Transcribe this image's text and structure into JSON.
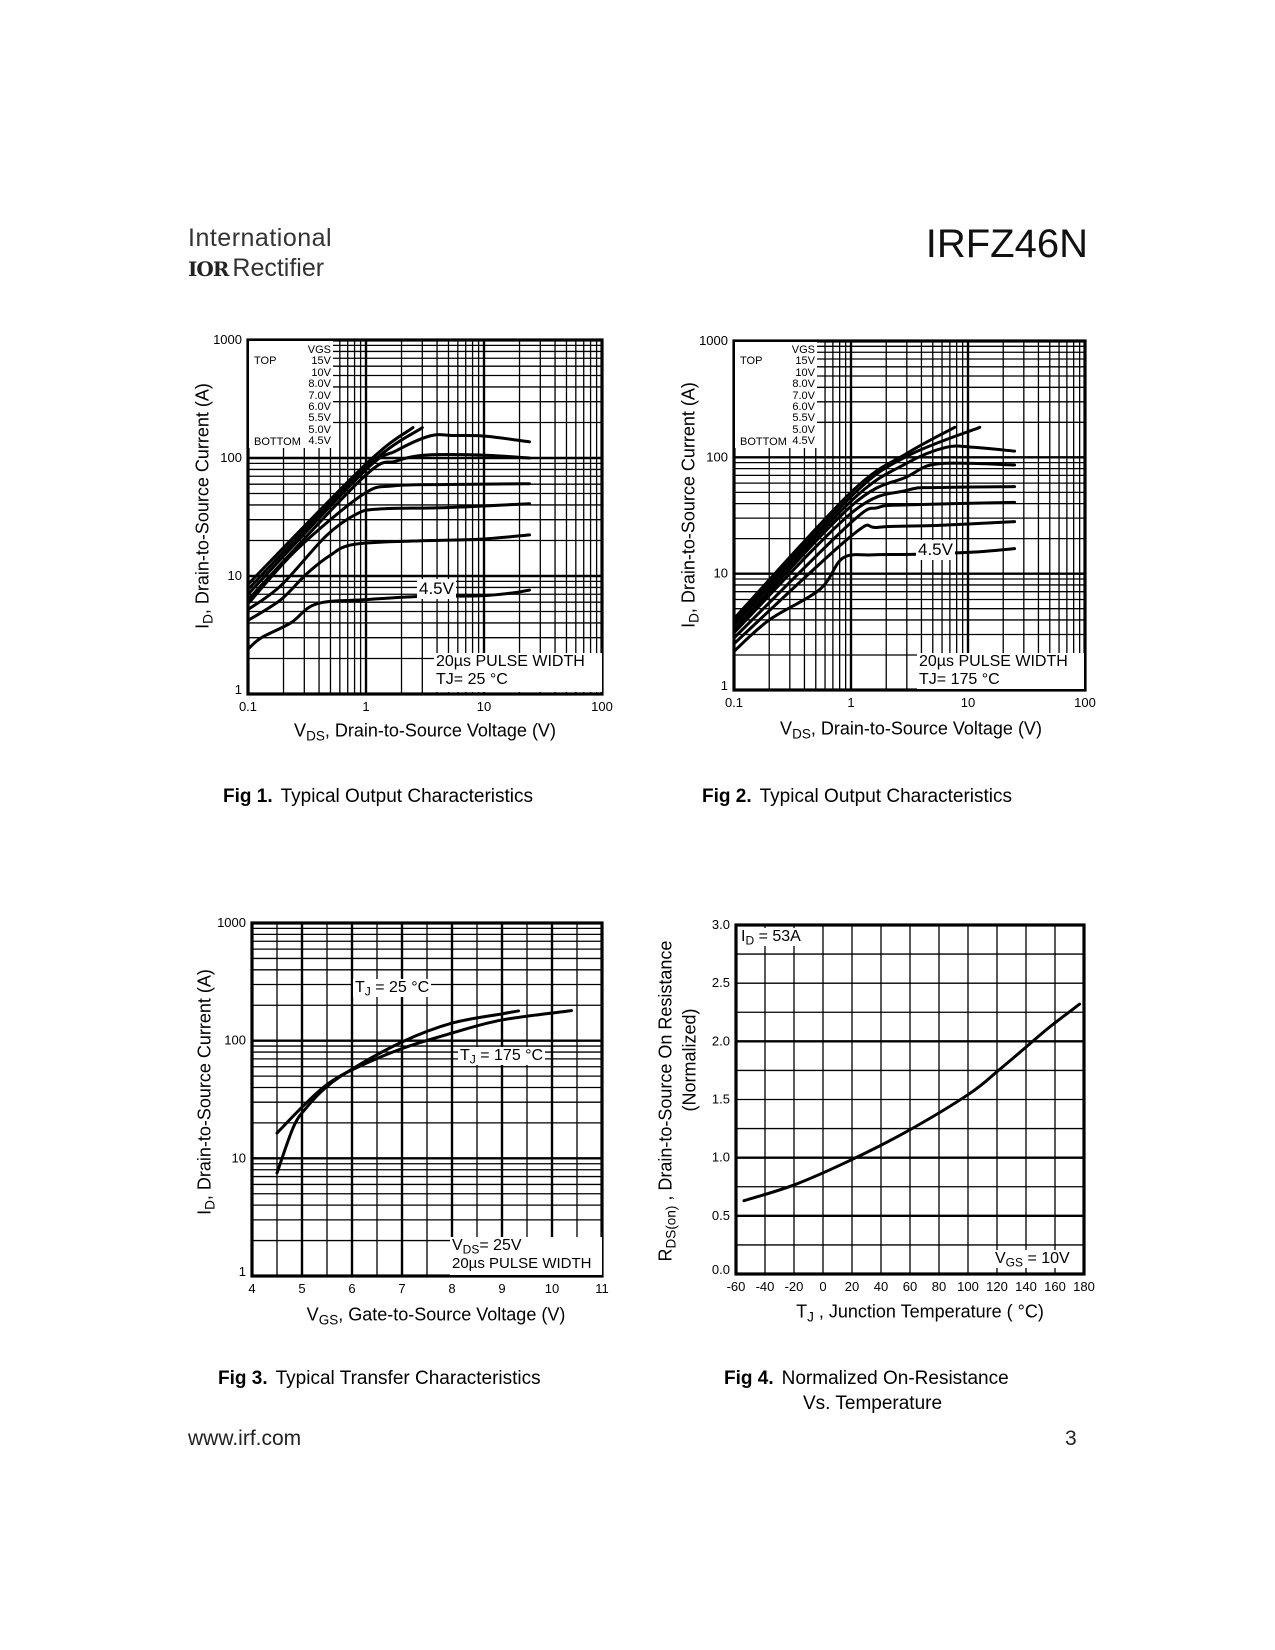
{
  "header": {
    "company_line1": "International",
    "company_logo": "IOR",
    "company_line2": "Rectifier",
    "part_number": "IRFZ46N"
  },
  "footer": {
    "url": "www.irf.com",
    "page": "3"
  },
  "chart_data": [
    {
      "type": "line",
      "caption_num": "Fig 1.",
      "caption": "Typical Output Characteristics",
      "xlabel": {
        "main": "V",
        "sub": "DS",
        "rest": ", Drain-to-Source Voltage (V)"
      },
      "ylabel": {
        "main": "I",
        "sub": "D",
        "rest": ",  Drain-to-Source Current (A)"
      },
      "xscale": "log",
      "yscale": "log",
      "xlim": [
        0.1,
        100
      ],
      "ylim": [
        1,
        1000
      ],
      "x_ticks": [
        "0.1",
        "1",
        "10",
        "100"
      ],
      "y_ticks": [
        "1",
        "10",
        "100",
        "1000"
      ],
      "grid": true,
      "legend": {
        "title": "VGS",
        "top_label": "TOP",
        "bottom_label": "BOTTOM",
        "values": [
          "15V",
          "10V",
          "8.0V",
          "7.0V",
          "6.0V",
          "5.5V",
          "5.0V",
          "4.5V"
        ],
        "placement": "top-left"
      },
      "curve_label": "4.5V",
      "annotation": {
        "line1": "20µs PULSE WIDTH",
        "line2_main": "TJ",
        "line2_rest": "= 25 °C"
      },
      "series": [
        {
          "name": "15V",
          "x": [
            0.1,
            1.0,
            2.5
          ],
          "y": [
            8.5,
            89,
            181
          ]
        },
        {
          "name": "10V",
          "x": [
            0.1,
            1.0,
            3.0
          ],
          "y": [
            7.7,
            83,
            181
          ]
        },
        {
          "name": "8.0V",
          "x": [
            0.1,
            0.94,
            1.8,
            3.5,
            5.5,
            10.4,
            24.3
          ],
          "y": [
            7.0,
            75,
            115,
            154,
            155,
            153,
            137
          ]
        },
        {
          "name": "7.0V",
          "x": [
            0.1,
            0.94,
            1.8,
            3.3,
            9.2,
            24.3
          ],
          "y": [
            6.3,
            68,
            94,
            106,
            106,
            100
          ]
        },
        {
          "name": "6.0V",
          "x": [
            0.1,
            0.26,
            0.94,
            1.7,
            4.8,
            24.3
          ],
          "y": [
            5.8,
            16.8,
            49,
            58,
            59.6,
            60.5
          ]
        },
        {
          "name": "5.5V",
          "x": [
            0.1,
            0.19,
            0.46,
            0.83,
            1.3,
            4.8,
            24.3
          ],
          "y": [
            5.2,
            8.3,
            21.9,
            33.5,
            37,
            38,
            41
          ]
        },
        {
          "name": "5.0V",
          "x": [
            0.1,
            0.19,
            0.31,
            0.49,
            0.78,
            2.5,
            9.2,
            24.3
          ],
          "y": [
            4.2,
            6.3,
            10.3,
            14.8,
            18.5,
            19.8,
            20.5,
            22.3
          ]
        },
        {
          "name": "4.5V",
          "x": [
            0.1,
            0.13,
            0.23,
            0.38,
            1.0,
            2.8,
            9.2,
            17.7,
            24.3
          ],
          "y": [
            2.4,
            3.0,
            4.0,
            5.8,
            6.3,
            6.7,
            6.8,
            7.2,
            7.6
          ]
        }
      ]
    },
    {
      "type": "line",
      "caption_num": "Fig 2.",
      "caption": "Typical Output Characteristics",
      "xlabel": {
        "main": "V",
        "sub": "DS",
        "rest": ", Drain-to-Source Voltage (V)"
      },
      "ylabel": {
        "main": "I",
        "sub": "D",
        "rest": ",  Drain-to-Source Current (A)"
      },
      "xscale": "log",
      "yscale": "log",
      "xlim": [
        0.1,
        100
      ],
      "ylim": [
        1,
        1000
      ],
      "x_ticks": [
        "0.1",
        "1",
        "10",
        "100"
      ],
      "y_ticks": [
        "1",
        "10",
        "100",
        "1000"
      ],
      "grid": true,
      "legend": {
        "title": "VGS",
        "top_label": "TOP",
        "bottom_label": "BOTTOM",
        "values": [
          "15V",
          "10V",
          "8.0V",
          "7.0V",
          "6.0V",
          "5.5V",
          "5.0V",
          "4.5V"
        ],
        "placement": "top-left"
      },
      "curve_label": "4.5V",
      "annotation": {
        "line1": "20µs PULSE WIDTH",
        "line2_main": "TJ",
        "line2_rest": "= 175 °C"
      },
      "series": [
        {
          "name": "15V",
          "x": [
            0.1,
            1.0,
            3.0,
            7.7
          ],
          "y": [
            4.1,
            50,
            108,
            181
          ]
        },
        {
          "name": "10V",
          "x": [
            0.1,
            1.0,
            3.0,
            12.6
          ],
          "y": [
            3.8,
            46,
            102,
            181
          ]
        },
        {
          "name": "8.0V",
          "x": [
            0.1,
            1.0,
            3.0,
            6.5,
            11,
            25
          ],
          "y": [
            3.6,
            42,
            89,
            122,
            122,
            113
          ]
        },
        {
          "name": "7.0V",
          "x": [
            0.1,
            1.0,
            3.0,
            5.6,
            25
          ],
          "y": [
            3.3,
            38,
            68,
            88,
            86
          ]
        },
        {
          "name": "6.0V",
          "x": [
            0.1,
            1.0,
            3.0,
            5.6,
            25
          ],
          "y": [
            3.1,
            33,
            52,
            55,
            56
          ]
        },
        {
          "name": "5.5V",
          "x": [
            0.1,
            0.98,
            1.7,
            3.0,
            25
          ],
          "y": [
            2.8,
            27,
            37,
            39,
            41
          ]
        },
        {
          "name": "5.0V",
          "x": [
            0.1,
            1.0,
            1.7,
            5.6,
            25
          ],
          "y": [
            2.5,
            21,
            25,
            26,
            28
          ]
        },
        {
          "name": "4.5V",
          "x": [
            0.1,
            0.2,
            0.54,
            0.85,
            1.5,
            3.6,
            11,
            25
          ],
          "y": [
            2.15,
            4.0,
            7.3,
            13.6,
            14.5,
            14.7,
            15.3,
            16.4
          ]
        }
      ]
    },
    {
      "type": "line",
      "caption_num": "Fig 3.",
      "caption": "Typical Transfer Characteristics",
      "xlabel": {
        "main": "V",
        "sub": "GS",
        "rest": ", Gate-to-Source Voltage (V)"
      },
      "ylabel": {
        "main": "I",
        "sub": "D",
        "rest": ",  Drain-to-Source Current (A)"
      },
      "xscale": "linear",
      "yscale": "log",
      "xlim": [
        4,
        11
      ],
      "ylim": [
        1,
        1000
      ],
      "x_ticks": [
        "4",
        "5",
        "6",
        "7",
        "8",
        "9",
        "10",
        "11"
      ],
      "y_ticks": [
        "1",
        "10",
        "100",
        "1000"
      ],
      "grid": true,
      "series_labels": [
        {
          "main": "T",
          "sub": "J",
          "rest": " = 25 °C"
        },
        {
          "main": "T",
          "sub": "J",
          "rest": " = 175 °C"
        }
      ],
      "annotation": {
        "line1_main": "V",
        "line1_sub": "DS",
        "line1_rest": "= 25V",
        "line2": "20µs PULSE WIDTH"
      },
      "series": [
        {
          "name": "TJ = 25 °C",
          "x": [
            4.5,
            4.83,
            5.09,
            5.49,
            6.02,
            7.01,
            8.0,
            9.0,
            9.33
          ],
          "y": [
            7.5,
            18.5,
            27,
            40.5,
            58,
            98,
            141,
            169,
            179
          ]
        },
        {
          "name": "TJ = 175 °C",
          "x": [
            4.5,
            5.03,
            5.49,
            6.02,
            7.01,
            8.0,
            9.0,
            10.39
          ],
          "y": [
            16.4,
            28,
            42,
            57,
            86,
            116,
            150,
            180
          ]
        }
      ]
    },
    {
      "type": "line",
      "caption_num": "Fig 4.",
      "caption": "Normalized On-Resistance",
      "caption_line2": "Vs. Temperature",
      "xlabel": {
        "main": "T",
        "sub": "J",
        "rest": " , Junction Temperature ( °C)"
      },
      "ylabel": {
        "main": "R",
        "sub": "DS(on)",
        "rest": " ,  Drain-to-Source On Resistance",
        "line2": "(Normalized)"
      },
      "xscale": "linear",
      "yscale": "linear",
      "xlim": [
        -60,
        180
      ],
      "ylim": [
        0,
        3.0
      ],
      "x_ticks": [
        "-60",
        "-40",
        "-20",
        "0",
        "20",
        "40",
        "60",
        "80",
        "100",
        "120",
        "140",
        "160",
        "180"
      ],
      "y_ticks": [
        "0.0",
        "0.5",
        "1.0",
        "1.5",
        "2.0",
        "2.5",
        "3.0"
      ],
      "grid": true,
      "annotation_top": {
        "main": "I",
        "sub": "D",
        "rest": " = 53A"
      },
      "annotation_bottom": {
        "main": "V",
        "sub": "GS",
        "rest": " = 10V"
      },
      "series": [
        {
          "x": [
            -54.5,
            -19,
            21,
            60,
            101,
            121,
            140,
            156,
            177
          ],
          "y": [
            0.63,
            0.77,
            0.99,
            1.24,
            1.55,
            1.75,
            1.95,
            2.12,
            2.32
          ]
        }
      ]
    }
  ]
}
